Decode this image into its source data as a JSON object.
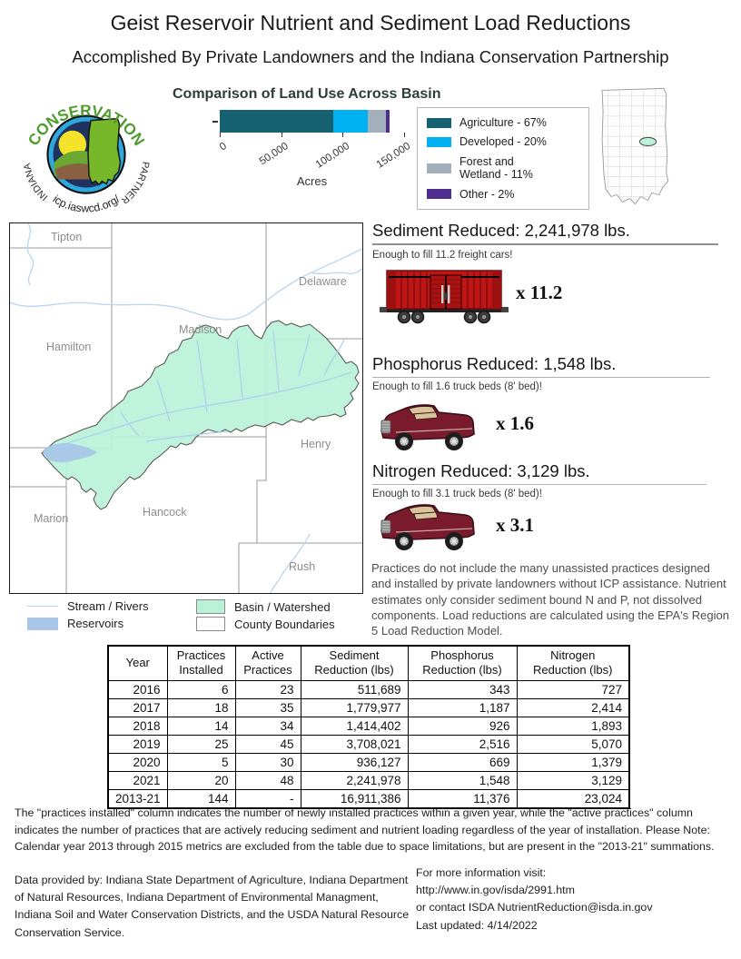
{
  "header": {
    "title": "Geist Reservoir Nutrient and Sediment Load Reductions",
    "subtitle": "Accomplished By Private Landowners and the Indiana Conservation Partnership"
  },
  "logo": {
    "arc_top": "CONSERVATION",
    "arc_left": "INDIANA",
    "arc_right": "PARTNERSHIP",
    "url": "icp.iaswcd.org/"
  },
  "land_use": {
    "title": "Comparison of Land Use Across Basin",
    "xlabel": "Acres"
  },
  "chart_data": {
    "type": "bar",
    "orientation": "horizontal-stacked",
    "title": "Comparison of Land Use Across Basin",
    "xlabel": "Acres",
    "xlim": [
      0,
      150000
    ],
    "xticks": [
      "0",
      "50,000",
      "100,000",
      "150,000"
    ],
    "grid": false,
    "legend_position": "right",
    "series": [
      {
        "name": "Agriculture - 67%",
        "percent": 67,
        "acres": 92800,
        "color": "#15616f"
      },
      {
        "name": "Developed - 20%",
        "percent": 20,
        "acres": 27700,
        "color": "#00b0f0"
      },
      {
        "name": "Forest and\nWetland - 11%",
        "percent": 11,
        "acres": 15200,
        "color": "#a3b0bc"
      },
      {
        "name": "Other - 2%",
        "percent": 2,
        "acres": 2800,
        "color": "#4f2d8f"
      }
    ]
  },
  "map": {
    "counties": [
      "Tipton",
      "Delaware",
      "Madison",
      "Hamilton",
      "Henry",
      "Marion",
      "Hancock",
      "Rush"
    ],
    "legend": [
      {
        "label": "Stream / Rivers"
      },
      {
        "label": "Reservoirs"
      },
      {
        "label": "Basin / Watershed"
      },
      {
        "label": "County Boundaries"
      }
    ]
  },
  "reductions": [
    {
      "heading": "Sediment Reduced: 2,241,978  lbs.",
      "note": "Enough to fill 11.2 freight cars!",
      "multiplier": "x 11.2"
    },
    {
      "heading": "Phosphorus Reduced: 1,548 lbs.",
      "note": "Enough to fill 1.6 truck beds (8' bed)!",
      "multiplier": "x 1.6"
    },
    {
      "heading": "Nitrogen Reduced: 3,129 lbs.",
      "note": "Enough to fill 3.1 truck beds (8' bed)!",
      "multiplier": "x 3.1"
    }
  ],
  "disclaimer": "Practices do not include the many unassisted practices designed and installed by private landowners  without ICP assistance. Nutrient estimates only consider sediment bound N and P, not dissolved components.  Load reductions are calculated using the EPA's Region 5 Load Reduction Model.",
  "table": {
    "headers": [
      "Year",
      "Practices\nInstalled",
      "Active\nPractices",
      "Sediment\nReduction (lbs)",
      "Phosphorus\nReduction (lbs)",
      "Nitrogen\nReduction (lbs)"
    ],
    "rows": [
      [
        "2016",
        "6",
        "23",
        "511,689",
        "343",
        "727"
      ],
      [
        "2017",
        "18",
        "35",
        "1,779,977",
        "1,187",
        "2,414"
      ],
      [
        "2018",
        "14",
        "34",
        "1,414,402",
        "926",
        "1,893"
      ],
      [
        "2019",
        "25",
        "45",
        "3,708,021",
        "2,516",
        "5,070"
      ],
      [
        "2020",
        "5",
        "30",
        "936,127",
        "669",
        "1,379"
      ],
      [
        "2021",
        "20",
        "48",
        "2,241,978",
        "1,548",
        "3,129"
      ],
      [
        "2013-21",
        "144",
        "-",
        "16,911,386",
        "11,376",
        "23,024"
      ]
    ]
  },
  "footnote": "The \"practices installed\" column indicates the number of newly installed practices within a given year, while the \"active practices\" column indicates the number of practices that are actively reducing sediment and nutrient loading regardless of the year of installation. Please Note: Calendar year 2013 through 2015 metrics are excluded from the table due to space limitations, but are present in the \"2013-21\" summations.",
  "credits": "Data provided by: Indiana State Department of Agriculture, Indiana Department of Natural Resources, Indiana Department of Environmental Managment, Indiana Soil and Water Conservation Districts, and the USDA Natural Resource Conservation Service.",
  "more_info": {
    "lines": [
      "For more information visit:",
      "http://www.in.gov/isda/2991.htm",
      "or contact ISDA NutrientReduction@isda.in.gov",
      "Last updated: 4/14/2022"
    ]
  },
  "colors": {
    "agriculture": "#15616f",
    "developed": "#00b0f0",
    "forest_wetland": "#a3b0bc",
    "other": "#4f2d8f",
    "basin_fill": "#baf2d8",
    "stream": "#b9d5f0",
    "reservoir": "#a9c6e8",
    "boxcar_red": "#c01515",
    "truck_maroon": "#7a1c2e"
  }
}
